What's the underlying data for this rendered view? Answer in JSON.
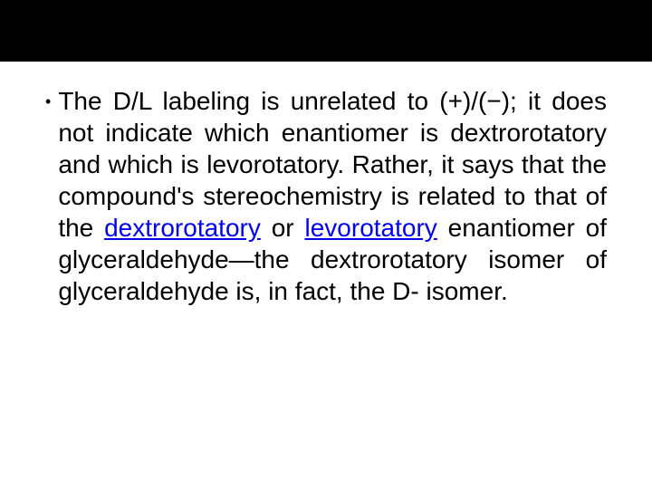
{
  "slide": {
    "header_bar_color": "#000000",
    "background_color": "#ffffff",
    "text_color": "#000000",
    "link_color": "#0000ee",
    "body_fontsize": 28,
    "bullet_char": "•",
    "text_parts": {
      "p1": "The D/L labeling is unrelated to (+)/(−); it does not indicate which enantiomer is dextrorotatory and which is levorotatory. Rather, it says that the compound's stereochemistry is related to that of the ",
      "link1": "dextrorotatory",
      "p2": " or ",
      "link2": "levorotatory",
      "p3": " enantiomer of glyceraldehyde—the dextrorotatory isomer of glyceraldehyde is, in fact, the D- isomer."
    }
  }
}
